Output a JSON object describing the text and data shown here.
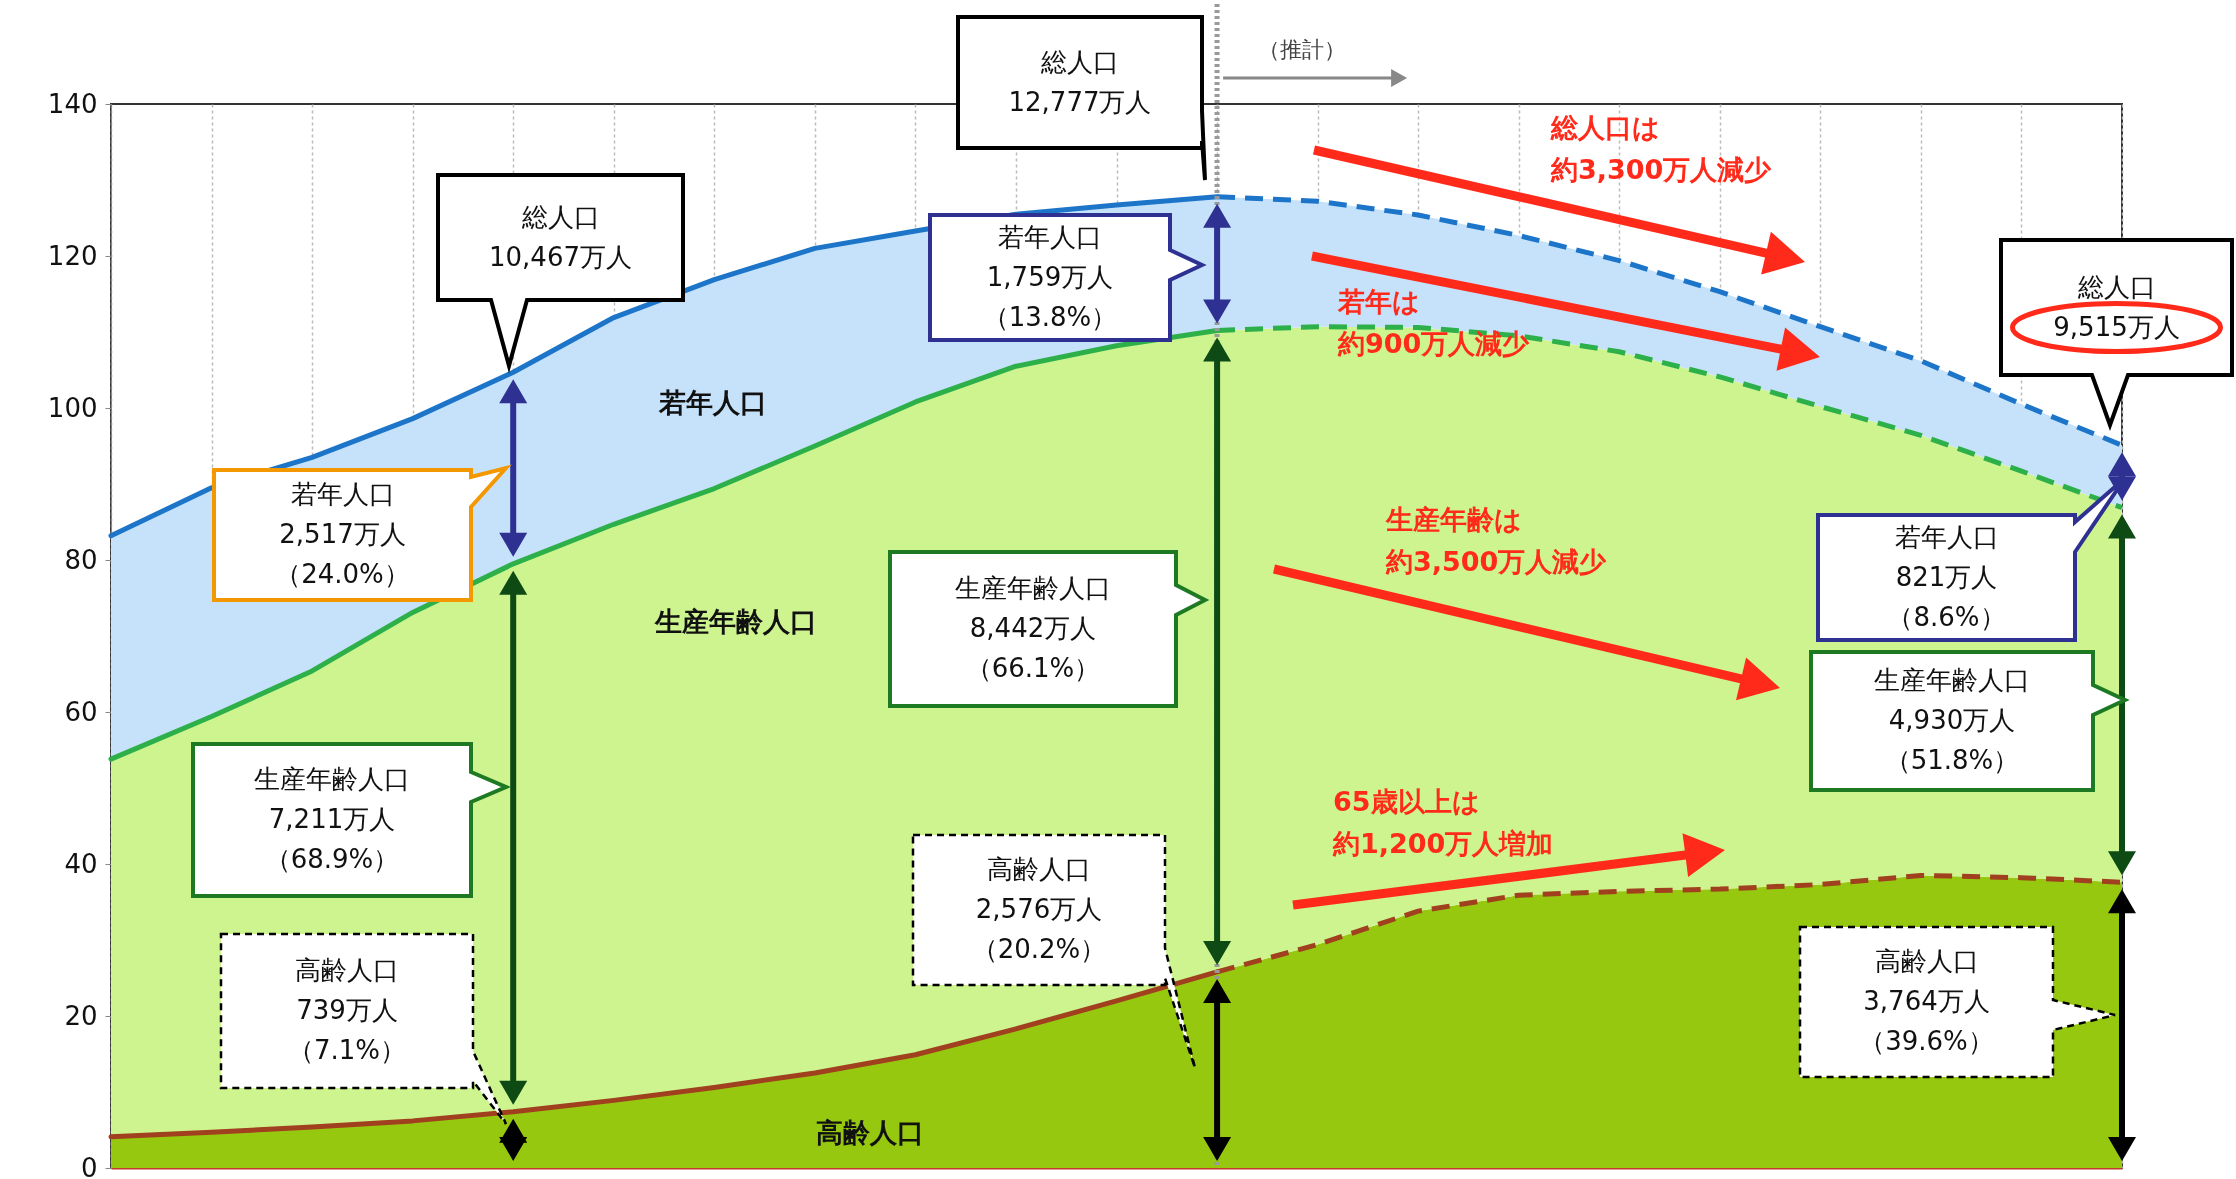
{
  "chart_data": {
    "type": "area",
    "stacked": true,
    "categories": [
      null,
      null,
      null,
      null,
      null,
      null,
      null,
      null,
      null,
      null,
      null,
      null,
      null,
      null,
      null,
      null,
      null,
      null,
      null,
      null,
      null
    ],
    "series": [
      {
        "name": "高齢人口",
        "color": "#96c80f",
        "values": [
          4.1,
          4.7,
          5.4,
          6.2,
          7.4,
          8.9,
          10.6,
          12.5,
          14.9,
          18.3,
          22.0,
          25.8,
          29.4,
          33.8,
          35.9,
          36.4,
          36.7,
          37.3,
          38.5,
          38.2,
          37.6
        ]
      },
      {
        "name": "生産年齢人口",
        "color": "#cdf48f",
        "values": [
          49.7,
          54.7,
          60.0,
          66.9,
          72.1,
          75.8,
          78.8,
          82.5,
          85.9,
          87.2,
          86.2,
          84.4,
          81.3,
          76.8,
          73.6,
          71.0,
          67.4,
          62.9,
          57.9,
          53.5,
          49.3
        ]
      },
      {
        "name": "若年人口",
        "color": "#c6e2fb",
        "values": [
          29.4,
          30.1,
          28.1,
          25.5,
          25.2,
          27.2,
          27.5,
          26.0,
          22.5,
          20.0,
          18.5,
          17.6,
          16.5,
          14.8,
          13.2,
          12.0,
          11.2,
          10.5,
          9.8,
          8.8,
          8.2
        ]
      }
    ],
    "ylim": [
      0,
      140
    ],
    "yticks": [
      0,
      20,
      40,
      60,
      80,
      100,
      120,
      140
    ],
    "grid": "x",
    "tick_labels": "y",
    "annotations": [
      "総人口",
      "10,467万人",
      "若年人口",
      "2,517万人",
      "（24.0%）",
      "生産年齢人口",
      "7,211万人",
      "（68.9%）",
      "高齢人口",
      "739万人",
      "（7.1%）",
      "総人口",
      "12,777万人",
      "若年人口",
      "1,759万人",
      "（13.8%）",
      "生産年齢人口",
      "8,442万人",
      "（66.1%）",
      "高齢人口",
      "2,576万人",
      "（20.2%）",
      "総人口",
      "9,515万人",
      "若年人口",
      "821万人",
      "（8.6%）",
      "生産年齢人口",
      "4,930万人",
      "（51.8%）",
      "高齢人口",
      "3,764万人",
      "（39.6%）",
      "総人口は",
      "約3,300万人減少",
      "若年は",
      "約900万人減少",
      "生産年齢は",
      "約3,500万人減少",
      "65歳以上は",
      "約1,200万人増加",
      "（推計）"
    ]
  }
}
